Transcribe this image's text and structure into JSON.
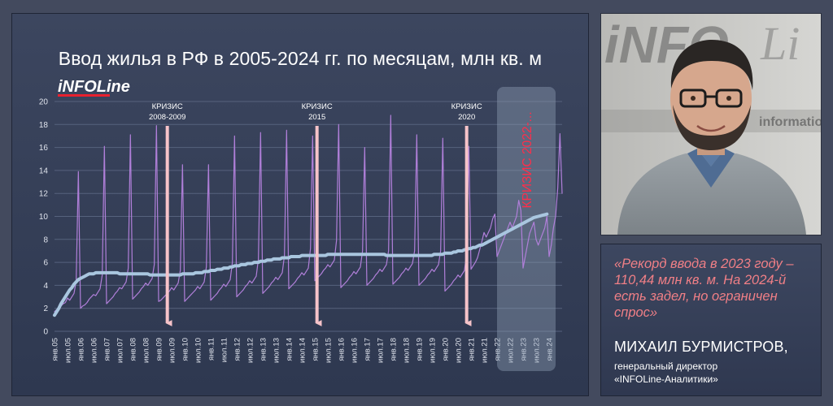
{
  "logo_text": "iNFOLine",
  "chart_data": {
    "type": "line",
    "title": "Ввод жилья в РФ в 2005-2024 гг. по месяцам, млн кв. м",
    "xlabel": "",
    "ylabel": "",
    "ylim": [
      0,
      20
    ],
    "yticks": [
      "0",
      "2",
      "4",
      "6",
      "8",
      "10",
      "12",
      "14",
      "16",
      "18",
      "20"
    ],
    "grid": true,
    "legend": "none",
    "x_tick_labels": [
      "янв.05",
      "июл.05",
      "янв.06",
      "июл.06",
      "янв.07",
      "июл.07",
      "янв.08",
      "июл.08",
      "янв.09",
      "июл.09",
      "янв.10",
      "июл.10",
      "янв.11",
      "июл.11",
      "янв.12",
      "июл.12",
      "янв.13",
      "июл.13",
      "янв.14",
      "июл.14",
      "янв.15",
      "июл.15",
      "янв.16",
      "июл.16",
      "янв.17",
      "июл.17",
      "янв.18",
      "июл.18",
      "янв.19",
      "июл.19",
      "янв.20",
      "июл.20",
      "янв.21",
      "июл.21",
      "янв.22",
      "июл.22",
      "янв.23",
      "июл.23",
      "янв.24"
    ],
    "series": [
      {
        "kind": "monthly",
        "color": "#b07fd9",
        "values": [
          1.7,
          1.9,
          2.0,
          2.2,
          2.4,
          2.5,
          2.9,
          2.7,
          3.0,
          3.3,
          4.4,
          13.9,
          2.0,
          2.2,
          2.3,
          2.5,
          2.8,
          3.0,
          3.2,
          3.1,
          3.4,
          3.7,
          4.9,
          16.1,
          2.4,
          2.6,
          2.8,
          3.0,
          3.3,
          3.5,
          3.8,
          3.7,
          4.0,
          4.3,
          5.5,
          17.1,
          2.8,
          3.0,
          3.2,
          3.4,
          3.7,
          3.9,
          4.2,
          4.0,
          4.3,
          4.6,
          5.8,
          17.9,
          2.6,
          2.7,
          2.9,
          3.1,
          3.3,
          3.5,
          3.8,
          3.6,
          3.9,
          4.2,
          5.3,
          14.5,
          2.6,
          2.8,
          3.0,
          3.2,
          3.4,
          3.6,
          3.9,
          3.7,
          4.0,
          4.3,
          5.6,
          14.5,
          2.7,
          2.9,
          3.1,
          3.3,
          3.6,
          3.8,
          4.1,
          3.9,
          4.2,
          4.5,
          6.0,
          17.0,
          3.0,
          3.2,
          3.4,
          3.6,
          3.9,
          4.1,
          4.4,
          4.2,
          4.5,
          4.8,
          6.3,
          17.3,
          3.3,
          3.5,
          3.7,
          3.9,
          4.2,
          4.4,
          4.7,
          4.5,
          4.8,
          5.1,
          6.6,
          17.5,
          3.7,
          3.9,
          4.1,
          4.3,
          4.6,
          4.8,
          5.1,
          4.9,
          5.2,
          5.5,
          7.2,
          17.0,
          4.4,
          4.6,
          4.8,
          5.0,
          5.3,
          5.5,
          5.8,
          5.6,
          5.9,
          6.2,
          7.9,
          18.0,
          3.8,
          4.0,
          4.2,
          4.4,
          4.7,
          4.9,
          5.2,
          5.0,
          5.3,
          5.6,
          7.0,
          16.0,
          4.0,
          4.2,
          4.4,
          4.6,
          4.9,
          5.1,
          5.4,
          5.2,
          5.5,
          5.8,
          7.0,
          18.8,
          4.1,
          4.3,
          4.5,
          4.7,
          5.0,
          5.2,
          5.5,
          5.3,
          5.6,
          5.9,
          7.0,
          17.1,
          4.0,
          4.2,
          4.4,
          4.6,
          4.9,
          5.1,
          5.4,
          5.2,
          5.5,
          5.8,
          7.0,
          16.8,
          3.5,
          3.7,
          3.9,
          4.1,
          4.4,
          4.6,
          4.9,
          4.7,
          5.0,
          5.3,
          6.8,
          16.1,
          5.4,
          5.7,
          6.0,
          6.4,
          7.1,
          7.8,
          8.6,
          8.2,
          8.6,
          9.0,
          9.8,
          10.2,
          6.5,
          7.0,
          7.5,
          8.0,
          8.5,
          9.0,
          9.5,
          9.0,
          9.5,
          10.0,
          11.4,
          10.5,
          5.5,
          6.5,
          7.5,
          8.5,
          9.0,
          9.5,
          8.0,
          7.5,
          8.0,
          8.5,
          9.0,
          10.0,
          6.5,
          7.5,
          9.0,
          10.0,
          12.5,
          17.2,
          12.0
        ]
      },
      {
        "kind": "trend",
        "color": "#a9c6df",
        "values": [
          1.4,
          1.7,
          2.0,
          2.4,
          2.7,
          3.0,
          3.3,
          3.6,
          3.8,
          4.1,
          4.3,
          4.5,
          4.6,
          4.7,
          4.8,
          4.9,
          5.0,
          5.0,
          5.0,
          5.1,
          5.1,
          5.1,
          5.1,
          5.1,
          5.1,
          5.1,
          5.1,
          5.1,
          5.1,
          5.1,
          5.0,
          5.0,
          5.0,
          5.0,
          5.0,
          5.0,
          5.0,
          5.0,
          5.0,
          5.0,
          5.0,
          5.0,
          5.0,
          5.0,
          4.9,
          4.9,
          4.9,
          4.9,
          4.9,
          4.9,
          4.9,
          4.9,
          4.9,
          4.9,
          4.9,
          4.9,
          4.9,
          4.9,
          4.9,
          5.0,
          5.0,
          5.0,
          5.0,
          5.0,
          5.0,
          5.1,
          5.1,
          5.1,
          5.1,
          5.2,
          5.2,
          5.2,
          5.3,
          5.3,
          5.3,
          5.4,
          5.4,
          5.4,
          5.5,
          5.5,
          5.5,
          5.6,
          5.6,
          5.7,
          5.7,
          5.7,
          5.8,
          5.8,
          5.8,
          5.9,
          5.9,
          5.9,
          6.0,
          6.0,
          6.0,
          6.1,
          6.1,
          6.1,
          6.2,
          6.2,
          6.2,
          6.3,
          6.3,
          6.3,
          6.3,
          6.4,
          6.4,
          6.4,
          6.4,
          6.5,
          6.5,
          6.5,
          6.5,
          6.5,
          6.6,
          6.6,
          6.6,
          6.6,
          6.6,
          6.6,
          6.6,
          6.6,
          6.6,
          6.6,
          6.6,
          6.6,
          6.7,
          6.7,
          6.7,
          6.7,
          6.7,
          6.7,
          6.7,
          6.7,
          6.7,
          6.7,
          6.7,
          6.7,
          6.7,
          6.7,
          6.7,
          6.7,
          6.7,
          6.7,
          6.7,
          6.7,
          6.7,
          6.7,
          6.7,
          6.7,
          6.7,
          6.7,
          6.7,
          6.6,
          6.6,
          6.6,
          6.6,
          6.6,
          6.6,
          6.6,
          6.6,
          6.6,
          6.6,
          6.6,
          6.6,
          6.6,
          6.6,
          6.6,
          6.6,
          6.6,
          6.6,
          6.6,
          6.6,
          6.6,
          6.6,
          6.7,
          6.7,
          6.7,
          6.7,
          6.7,
          6.8,
          6.8,
          6.8,
          6.8,
          6.9,
          6.9,
          7.0,
          7.0,
          7.0,
          7.1,
          7.1,
          7.2,
          7.2,
          7.3,
          7.3,
          7.4,
          7.5,
          7.5,
          7.6,
          7.7,
          7.8,
          7.9,
          8.0,
          8.1,
          8.2,
          8.3,
          8.4,
          8.5,
          8.6,
          8.7,
          8.8,
          8.9,
          9.0,
          9.1,
          9.2,
          9.3,
          9.4,
          9.5,
          9.6,
          9.7,
          9.8,
          9.9,
          9.95,
          10.0,
          10.05,
          10.1,
          10.15,
          10.2
        ]
      }
    ],
    "annotations": [
      {
        "kind": "crisis",
        "label_lines": [
          "КРИЗИС",
          "2008-2009"
        ],
        "x_index": 52,
        "color": "#f6c3c9"
      },
      {
        "kind": "crisis",
        "label_lines": [
          "КРИЗИС",
          "2015"
        ],
        "x_index": 121,
        "color": "#f6c3c9"
      },
      {
        "kind": "crisis",
        "label_lines": [
          "КРИЗИС",
          "2020"
        ],
        "x_index": 190,
        "color": "#f6c3c9"
      },
      {
        "kind": "crisis_period",
        "label": "КРИЗИС 2022-...",
        "x_start_index": 204,
        "x_end_index": 231,
        "color": "#ff2e4a"
      }
    ]
  },
  "quote": {
    "text": "«Рекорд ввода в 2023 году – 110,44 млн кв. м. На 2024-й есть задел, но ограничен спрос»",
    "person_name": "МИХАИЛ БУРМИСТРОВ,",
    "person_role_lines": [
      "генеральный директор",
      "«INFOLine-Аналитики»"
    ]
  },
  "photo": {
    "bg_text_1": "iNFO",
    "bg_text_2": "Li",
    "bg_text_3": "information"
  }
}
